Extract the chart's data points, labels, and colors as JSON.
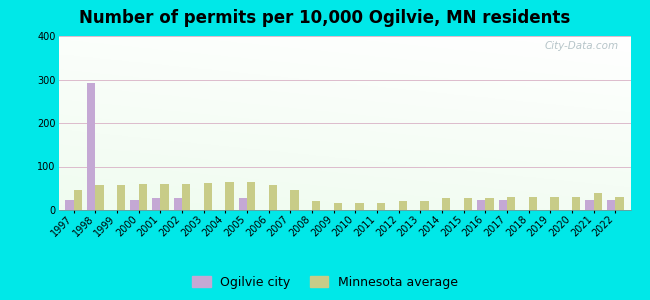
{
  "title": "Number of permits per 10,000 Ogilvie, MN residents",
  "years": [
    1997,
    1998,
    1999,
    2000,
    2001,
    2002,
    2003,
    2004,
    2005,
    2006,
    2007,
    2008,
    2009,
    2010,
    2011,
    2012,
    2013,
    2014,
    2015,
    2016,
    2017,
    2018,
    2019,
    2020,
    2021,
    2022
  ],
  "city_values": [
    22,
    291,
    0,
    22,
    28,
    28,
    0,
    0,
    28,
    0,
    0,
    0,
    0,
    0,
    0,
    0,
    0,
    0,
    0,
    22,
    22,
    0,
    0,
    0,
    22,
    22
  ],
  "avg_values": [
    47,
    57,
    57,
    60,
    60,
    60,
    62,
    65,
    65,
    57,
    47,
    20,
    17,
    17,
    17,
    20,
    20,
    27,
    27,
    27,
    30,
    30,
    30,
    30,
    38,
    30
  ],
  "city_color": "#c4a8d4",
  "avg_color": "#c8cc88",
  "outer_background": "#00e8e8",
  "ylim": [
    0,
    400
  ],
  "yticks": [
    0,
    100,
    200,
    300,
    400
  ],
  "bar_width": 0.38,
  "city_label": "Ogilvie city",
  "avg_label": "Minnesota average",
  "watermark": "City-Data.com",
  "title_fontsize": 12,
  "tick_fontsize": 7,
  "legend_fontsize": 9
}
